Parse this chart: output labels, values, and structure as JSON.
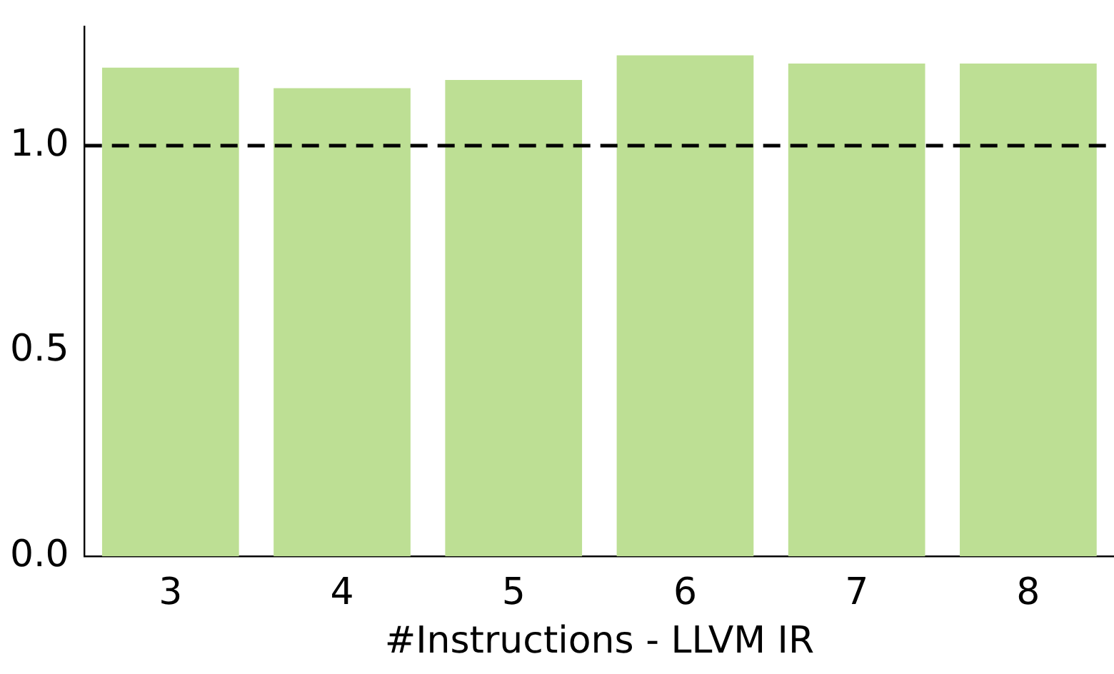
{
  "chart_data": {
    "type": "bar",
    "xlabel": "#Instructions - LLVM IR",
    "categories": [
      "3",
      "4",
      "5",
      "6",
      "7",
      "8"
    ],
    "values": [
      1.19,
      1.14,
      1.16,
      1.22,
      1.2,
      1.2
    ],
    "color": "#bddf94",
    "ylim": [
      0,
      1.29
    ],
    "yticks": [
      {
        "value": 0,
        "label": "0.0"
      },
      {
        "value": 0.5,
        "label": "0.5"
      },
      {
        "value": 1,
        "label": "1.0"
      }
    ],
    "grid": false,
    "ref_lines": [
      {
        "axis": "y",
        "value": 1.0,
        "color": "#000000",
        "line_style": "dashed"
      }
    ]
  }
}
